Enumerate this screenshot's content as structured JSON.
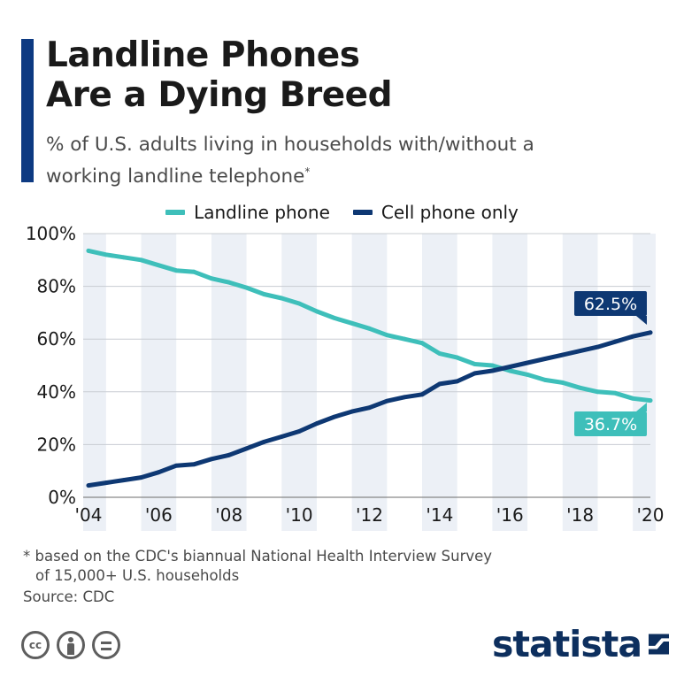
{
  "header": {
    "title_line1": "Landline Phones",
    "title_line2": "Are a Dying Breed",
    "subtitle": "% of U.S. adults living in households with/without a working landline telephone",
    "subtitle_marker": "*"
  },
  "colors": {
    "accent": "#0d3a82",
    "landline": "#3ebfba",
    "cell": "#0e3873",
    "band": "#ecf0f6",
    "grid": "#c8ccd2",
    "text": "#1a1a1a",
    "muted": "#4a4a4a",
    "brand": "#0d2f5e"
  },
  "chart_data": {
    "type": "line",
    "title": "Landline Phones Are a Dying Breed",
    "xlabel": "",
    "ylabel": "",
    "xlim": [
      2004,
      2020
    ],
    "ylim": [
      0,
      100
    ],
    "x_ticks": [
      2004,
      2006,
      2008,
      2010,
      2012,
      2014,
      2016,
      2018,
      2020
    ],
    "x_tick_labels": [
      "'04",
      "'06",
      "'08",
      "'10",
      "'12",
      "'14",
      "'16",
      "'18",
      "'20"
    ],
    "y_ticks": [
      0,
      20,
      40,
      60,
      80,
      100
    ],
    "y_tick_labels": [
      "0%",
      "20%",
      "40%",
      "60%",
      "80%",
      "100%"
    ],
    "grid": true,
    "legend_position": "top-center",
    "x": [
      2004,
      2004.5,
      2005,
      2005.5,
      2006,
      2006.5,
      2007,
      2007.5,
      2008,
      2008.5,
      2009,
      2009.5,
      2010,
      2010.5,
      2011,
      2011.5,
      2012,
      2012.5,
      2013,
      2013.5,
      2014,
      2014.5,
      2015,
      2015.5,
      2016,
      2016.5,
      2017,
      2017.5,
      2018,
      2018.5,
      2019,
      2019.5,
      2020
    ],
    "series": [
      {
        "name": "Landline phone",
        "color": "#3ebfba",
        "values": [
          93.5,
          92,
          91,
          90,
          88,
          86,
          85.5,
          83,
          81.5,
          79.5,
          77,
          75.5,
          73.5,
          70.5,
          68,
          66,
          64,
          61.5,
          60,
          58.5,
          54.5,
          53,
          50.5,
          50,
          48,
          46.5,
          44.5,
          43.5,
          41.5,
          40,
          39.5,
          37.5,
          36.7
        ],
        "end_label": "36.7%"
      },
      {
        "name": "Cell phone only",
        "color": "#0e3873",
        "values": [
          4.5,
          5.5,
          6.5,
          7.5,
          9.5,
          12,
          12.5,
          14.5,
          16,
          18.5,
          21,
          23,
          25,
          28,
          30.5,
          32.5,
          34,
          36.5,
          38,
          39,
          43,
          44,
          47,
          48,
          49.5,
          51,
          52.5,
          54,
          55.5,
          57,
          59,
          61,
          62.5
        ],
        "end_label": "62.5%"
      }
    ]
  },
  "footer": {
    "footnote_line1": "* based on the CDC's biannual National Health Interview Survey",
    "footnote_line2": "of 15,000+ U.S. households",
    "source": "Source: CDC",
    "license_icons": [
      "cc-icon",
      "by-icon",
      "nd-icon"
    ],
    "license_cc_text": "cc",
    "brand": "statista"
  }
}
